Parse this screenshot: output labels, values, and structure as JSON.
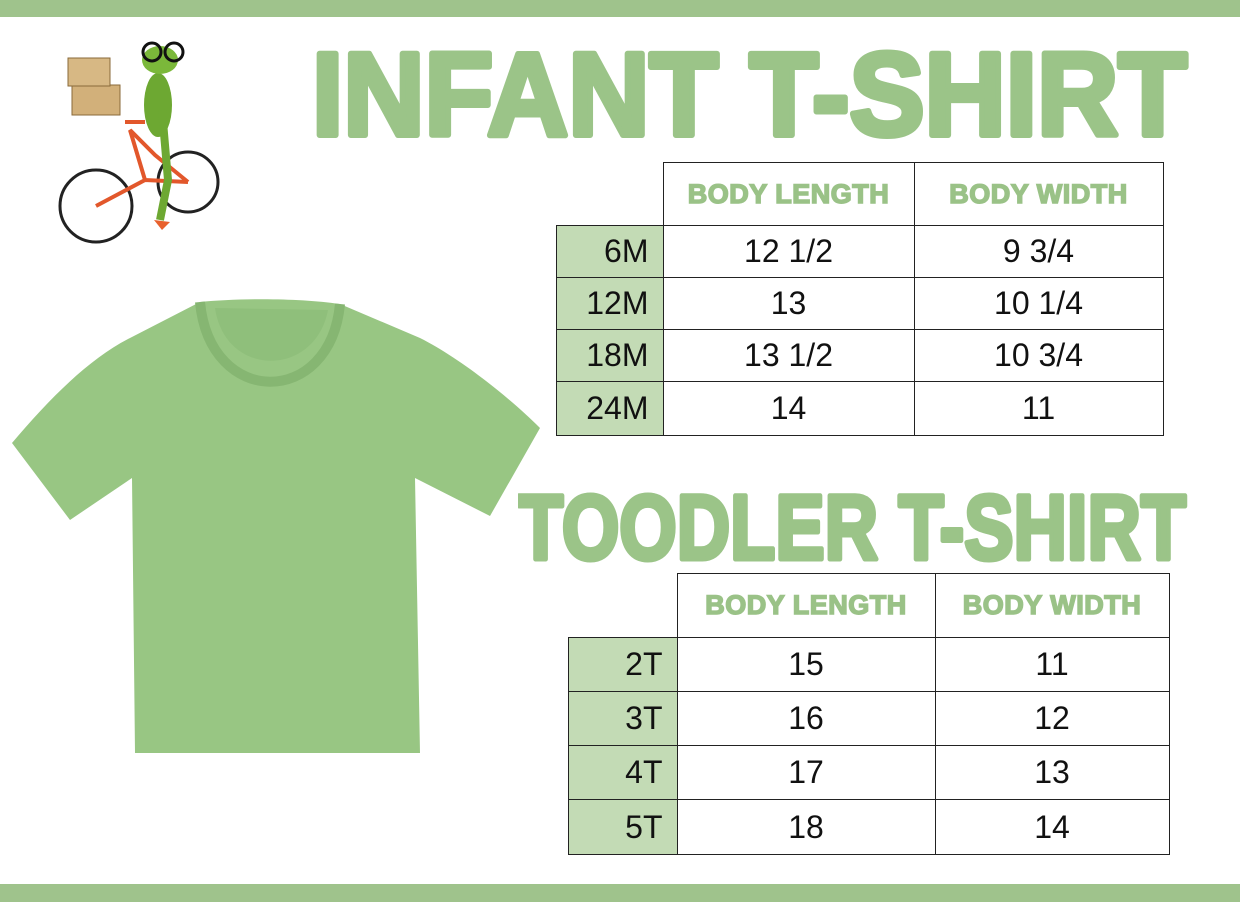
{
  "colors": {
    "accent": "#9bc488",
    "shirt": "#98c683",
    "size_cell": "#c3dbb5"
  },
  "illustration": {
    "icon": "frog-on-bicycle-carrying-boxes"
  },
  "product_image": {
    "icon": "green-tshirt"
  },
  "infant": {
    "title": "INFANT T-SHIRT",
    "headers": [
      "BODY LENGTH",
      "BODY WIDTH"
    ],
    "rows": [
      {
        "size": "6M",
        "length": "12 1/2",
        "width": "9 3/4"
      },
      {
        "size": "12M",
        "length": "13",
        "width": "10 1/4"
      },
      {
        "size": "18M",
        "length": "13 1/2",
        "width": "10 3/4"
      },
      {
        "size": "24M",
        "length": "14",
        "width": "11"
      }
    ]
  },
  "toddler": {
    "title": "TOODLER T-SHIRT",
    "headers": [
      "BODY LENGTH",
      "BODY WIDTH"
    ],
    "rows": [
      {
        "size": "2T",
        "length": "15",
        "width": "11"
      },
      {
        "size": "3T",
        "length": "16",
        "width": "12"
      },
      {
        "size": "4T",
        "length": "17",
        "width": "13"
      },
      {
        "size": "5T",
        "length": "18",
        "width": "14"
      }
    ]
  }
}
